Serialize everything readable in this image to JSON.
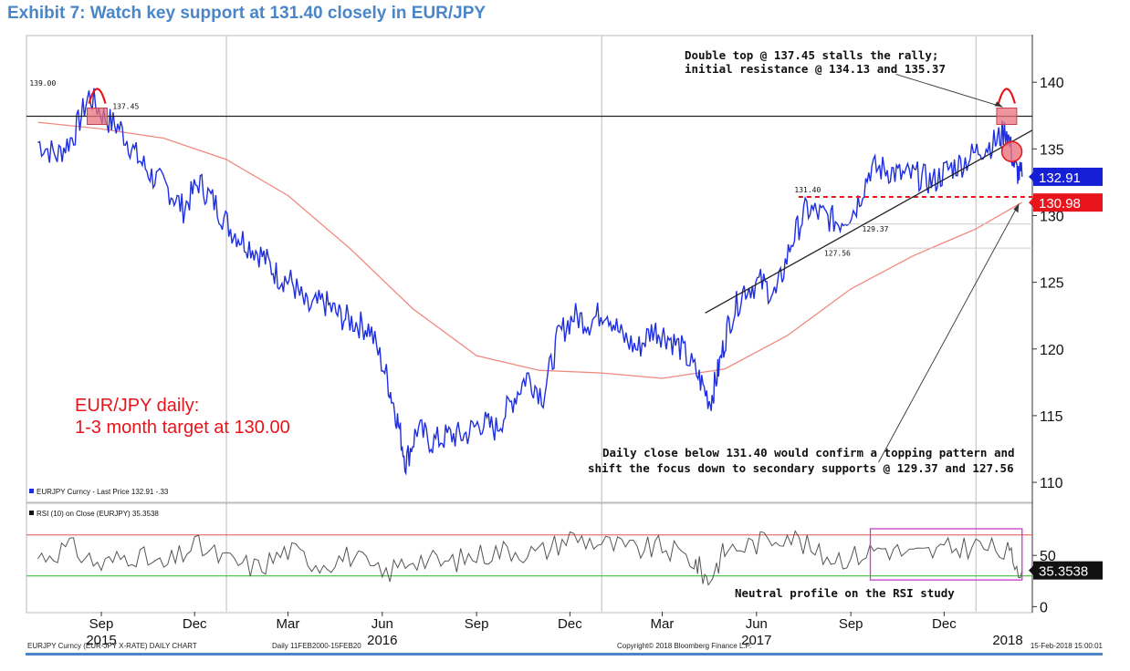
{
  "header": {
    "exhibit_title": "Exhibit 7: Watch key support at 131.40 closely in EUR/JPY"
  },
  "colors": {
    "title_blue": "#4a86c7",
    "price_blue": "#1f2fe0",
    "ma_red": "#f08a80",
    "support_red": "#e8141b",
    "annotation_red": "#e8141b",
    "rsi_line": "#555555",
    "rsi_upper": "#e65050",
    "rsi_lower": "#3cbf3c",
    "rsi_box": "#c43ec9",
    "last_price_tag": "#1520d6",
    "support_tag": "#e8141b"
  },
  "chart_data": [
    {
      "type": "line",
      "panel": "price",
      "x": [
        "2015-07-01",
        "2015-07-20",
        "2015-08-05",
        "2015-08-20",
        "2015-09-05",
        "2015-09-20",
        "2015-10-05",
        "2015-10-20",
        "2015-11-05",
        "2015-11-20",
        "2015-12-05",
        "2015-12-20",
        "2016-01-05",
        "2016-01-20",
        "2016-02-05",
        "2016-02-20",
        "2016-03-05",
        "2016-03-20",
        "2016-04-05",
        "2016-04-20",
        "2016-05-05",
        "2016-05-20",
        "2016-06-05",
        "2016-06-15",
        "2016-06-24",
        "2016-07-05",
        "2016-07-20",
        "2016-08-05",
        "2016-08-20",
        "2016-09-05",
        "2016-09-20",
        "2016-10-05",
        "2016-10-20",
        "2016-11-05",
        "2016-11-20",
        "2016-12-05",
        "2016-12-20",
        "2017-01-05",
        "2017-01-20",
        "2017-02-05",
        "2017-02-20",
        "2017-03-05",
        "2017-03-20",
        "2017-04-05",
        "2017-04-17",
        "2017-04-25",
        "2017-05-05",
        "2017-05-20",
        "2017-06-05",
        "2017-06-20",
        "2017-07-05",
        "2017-07-20",
        "2017-08-05",
        "2017-08-20",
        "2017-09-05",
        "2017-09-20",
        "2017-10-05",
        "2017-10-20",
        "2017-11-05",
        "2017-11-20",
        "2017-12-05",
        "2017-12-20",
        "2018-01-05",
        "2018-01-20",
        "2018-01-31",
        "2018-02-08",
        "2018-02-15"
      ],
      "y": [
        135.5,
        134.5,
        136.0,
        139.0,
        137.3,
        136.5,
        134.5,
        133.0,
        132.0,
        130.5,
        132.5,
        131.0,
        129.0,
        128.0,
        127.0,
        125.5,
        125.0,
        123.0,
        123.5,
        122.5,
        122.0,
        121.5,
        118.0,
        115.0,
        111.5,
        114.0,
        113.0,
        113.5,
        113.5,
        114.5,
        114.0,
        116.0,
        118.0,
        116.5,
        121.0,
        122.5,
        122.0,
        123.0,
        121.0,
        120.0,
        121.5,
        121.0,
        120.0,
        118.0,
        116.0,
        118.5,
        122.0,
        124.5,
        125.0,
        124.0,
        128.0,
        130.5,
        130.0,
        129.5,
        130.5,
        133.5,
        133.5,
        133.0,
        133.0,
        132.5,
        133.5,
        134.0,
        135.0,
        135.5,
        136.5,
        133.5,
        132.91
      ],
      "series": [
        {
          "name": "EURJPY Curncy - Last Price 132.91 -.33"
        }
      ],
      "ma_x": [
        "2015-07-01",
        "2015-09-01",
        "2015-11-01",
        "2016-01-01",
        "2016-03-01",
        "2016-05-01",
        "2016-07-01",
        "2016-09-01",
        "2016-11-01",
        "2017-01-01",
        "2017-03-01",
        "2017-05-01",
        "2017-07-01",
        "2017-09-01",
        "2017-11-01",
        "2018-01-01",
        "2018-02-15"
      ],
      "ma_y": [
        137.0,
        136.5,
        135.8,
        134.2,
        131.5,
        127.5,
        123.0,
        119.5,
        118.4,
        118.2,
        117.8,
        118.5,
        121.0,
        124.5,
        127.0,
        129.0,
        131.0
      ],
      "ylim": [
        108.5,
        143.5
      ],
      "xlim": [
        "2015-06-20",
        "2018-02-25"
      ],
      "ytick_labels": [
        "110",
        "115",
        "120",
        "125",
        "130",
        "135",
        "140"
      ],
      "month_tick_labels": [
        "Sep",
        "Dec",
        "Mar",
        "Jun",
        "Sep",
        "Dec",
        "Mar",
        "Jun",
        "Sep",
        "Dec"
      ],
      "month_tick_dates": [
        "2015-09-01",
        "2015-12-01",
        "2016-03-01",
        "2016-06-01",
        "2016-09-01",
        "2016-12-01",
        "2017-03-01",
        "2017-06-01",
        "2017-09-01",
        "2017-12-01"
      ],
      "year_labels": [
        "2015",
        "2016",
        "2017",
        "2018"
      ],
      "year_label_dates": [
        "2015-09-01",
        "2016-06-01",
        "2017-06-01",
        "2018-02-01"
      ],
      "year_divider_dates": [
        "2016-01-01",
        "2017-01-01",
        "2018-01-01"
      ],
      "horizontal_levels": {
        "resistance": 137.45,
        "support": 131.4,
        "support_2": 129.37,
        "support_3": 127.56
      },
      "trendline": {
        "x": [
          "2017-04-12",
          "2018-02-25"
        ],
        "y": [
          122.7,
          136.4
        ]
      },
      "level_labels": [
        "139.00",
        "137.45",
        "131.40",
        "129.37",
        "127.56"
      ],
      "last_price_tag": "132.91",
      "support_tag": "130.98",
      "annotation_top": [
        "Double top @ 137.45 stalls the rally;",
        "initial resistance @ 134.13 and 135.37"
      ],
      "annotation_bottom": [
        "Daily close below 131.40 would confirm a topping pattern and",
        "shift the focus down to secondary supports @ 129.37 and 127.56"
      ],
      "title_left": [
        "EUR/JPY daily:",
        "1-3 month target at 130.00"
      ],
      "legend": "EURJPY Curncy - Last Price 132.91 -.33"
    },
    {
      "type": "line",
      "panel": "rsi",
      "series": [
        {
          "name": "RSI (10) on Close (EURJPY) 35.3538"
        }
      ],
      "x": [
        "2015-07-01",
        "2015-08-01",
        "2015-09-01",
        "2015-10-01",
        "2015-11-01",
        "2015-12-01",
        "2016-01-01",
        "2016-02-01",
        "2016-03-01",
        "2016-04-01",
        "2016-05-01",
        "2016-06-01",
        "2016-07-01",
        "2016-08-01",
        "2016-09-01",
        "2016-10-01",
        "2016-11-01",
        "2016-12-01",
        "2017-01-01",
        "2017-02-01",
        "2017-03-01",
        "2017-04-01",
        "2017-04-15",
        "2017-05-01",
        "2017-06-01",
        "2017-07-01",
        "2017-08-01",
        "2017-09-01",
        "2017-10-01",
        "2017-11-01",
        "2017-12-01",
        "2018-01-01",
        "2018-02-01",
        "2018-02-15"
      ],
      "y": [
        48,
        58,
        40,
        52,
        38,
        60,
        45,
        38,
        55,
        42,
        50,
        30,
        48,
        42,
        50,
        56,
        52,
        68,
        62,
        55,
        58,
        45,
        25,
        55,
        62,
        72,
        50,
        48,
        58,
        50,
        55,
        60,
        52,
        35.3538
      ],
      "ylim": [
        -5,
        100
      ],
      "upper_band": 70,
      "lower_band": 30,
      "ytick_labels": [
        "0",
        "50"
      ],
      "value_tag": "35.3538",
      "annotation": "Neutral profile on the RSI study",
      "highlight_box_x": [
        "2017-09-20",
        "2018-02-15"
      ],
      "legend": "RSI (10) on Close (EURJPY) 35.3538"
    }
  ],
  "footer": {
    "left": "EURJPY Curncy (EUR-JPY X-RATE) DAILY CHART",
    "middle": "Daily 11FEB2000-15FEB20",
    "copyright": "Copyright© 2018 Bloomberg Finance L.P.",
    "right": "15-Feb-2018 15:00:01"
  }
}
